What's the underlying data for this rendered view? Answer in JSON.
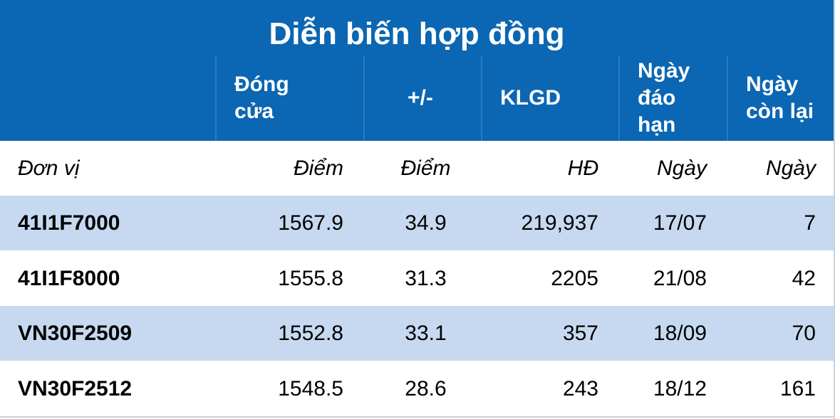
{
  "title": "Diễn biến hợp đồng",
  "header": [
    "Đóng cửa",
    "+/-",
    "KLGD",
    "Ngày đáo hạn",
    "Ngày còn lại"
  ],
  "units": [
    "Đơn vị",
    "Điểm",
    "Điểm",
    "HĐ",
    "Ngày",
    "Ngày"
  ],
  "rows": [
    [
      "41I1F7000",
      "1567.9",
      "34.9",
      "219,937",
      "17/07",
      "7"
    ],
    [
      "41I1F8000",
      "1555.8",
      "31.3",
      "2205",
      "21/08",
      "42"
    ],
    [
      "VN30F2509",
      "1552.8",
      "33.1",
      "357",
      "18/09",
      "70"
    ],
    [
      "VN30F2512",
      "1548.5",
      "28.6",
      "243",
      "18/12",
      "161"
    ]
  ]
}
